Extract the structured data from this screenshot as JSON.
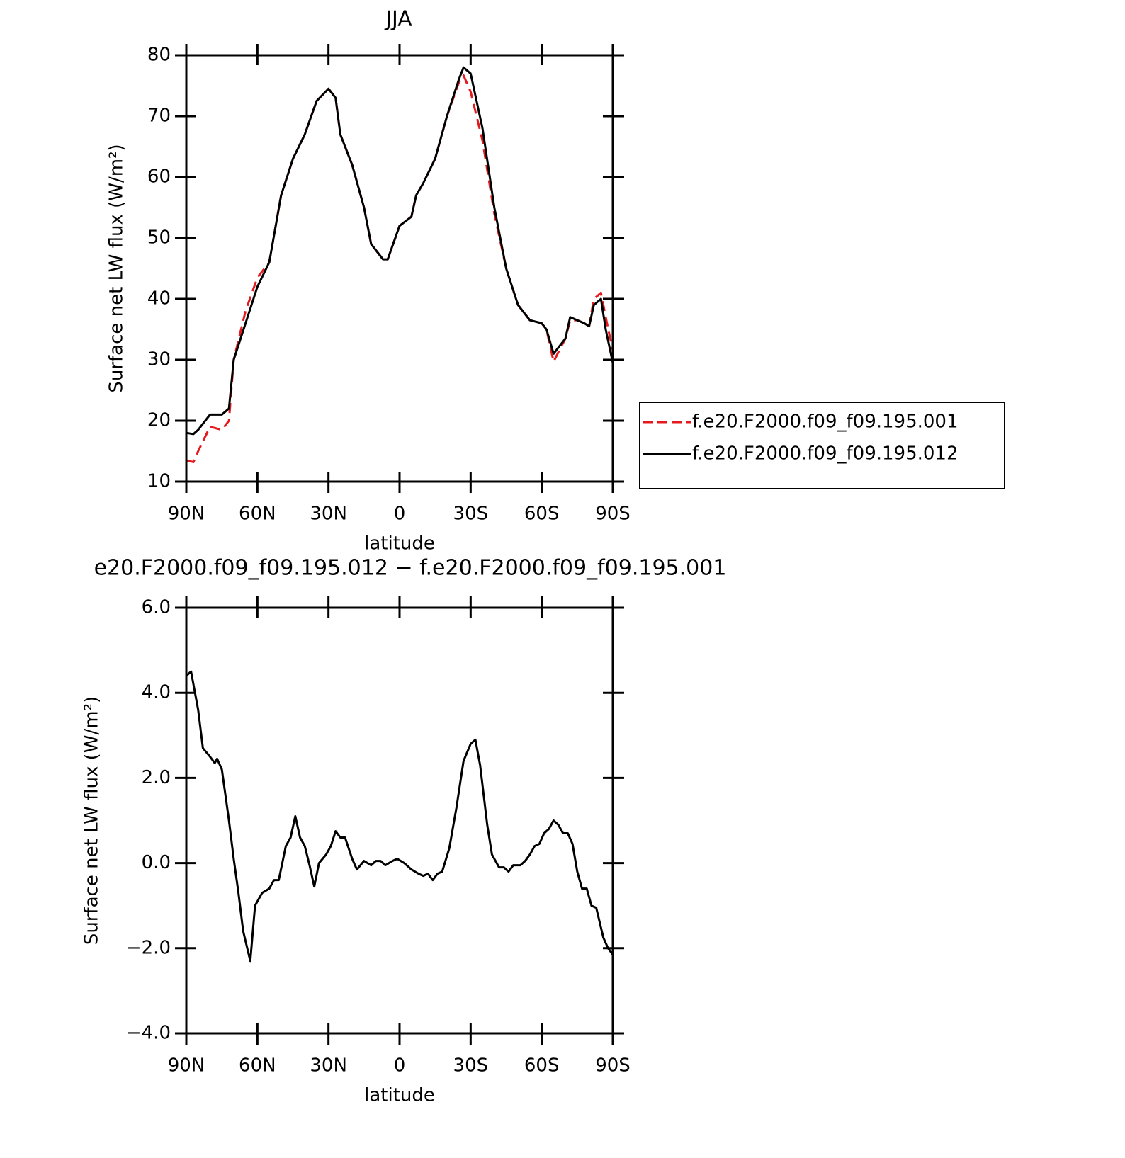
{
  "chart_data": [
    {
      "type": "line",
      "title": "JJA",
      "x_label": "latitude",
      "y_label": "Surface net LW flux (W/m²)",
      "x": [
        90,
        87,
        85,
        80,
        75,
        72,
        70,
        65,
        60,
        55,
        50,
        45,
        40,
        35,
        30,
        27,
        25,
        20,
        15,
        12,
        10,
        7,
        5,
        0,
        -5,
        -7,
        -10,
        -15,
        -20,
        -25,
        -27,
        -30,
        -35,
        -40,
        -45,
        -50,
        -55,
        -60,
        -62,
        -65,
        -68,
        -70,
        -72,
        -75,
        -78,
        -80,
        -82,
        -85,
        -87,
        -90
      ],
      "series": [
        {
          "name": "f.e20.F2000.f09_f09.195.001",
          "color": "#e41a1c",
          "line_style": "dashed",
          "values": [
            13.5,
            13.2,
            15,
            19,
            18.5,
            20,
            30,
            38,
            43.5,
            46,
            57,
            63,
            67,
            72.5,
            74.5,
            73,
            67,
            62,
            55,
            49,
            48,
            46.5,
            46.5,
            52,
            53.5,
            57,
            59,
            63,
            70,
            75.5,
            76.7,
            74,
            66,
            54,
            45,
            39,
            36.5,
            36,
            35,
            29.7,
            32,
            33.5,
            36.5,
            36.5,
            36,
            35.5,
            40,
            41,
            37,
            31.5
          ]
        },
        {
          "name": "f.e20.F2000.f09_f09.195.012",
          "color": "#000000",
          "line_style": "solid",
          "values": [
            18,
            17.8,
            18.5,
            21,
            21,
            22,
            30,
            36,
            42,
            46,
            57,
            63,
            67,
            72.5,
            74.5,
            73,
            67,
            62,
            55,
            49,
            48,
            46.5,
            46.5,
            52,
            53.5,
            57,
            59,
            63,
            70,
            76,
            78,
            77,
            68,
            55,
            45,
            39,
            36.5,
            36,
            35,
            31,
            32.5,
            33.5,
            37,
            36.5,
            36,
            35.5,
            39,
            40,
            35,
            29.5
          ]
        }
      ],
      "xlim": [
        90,
        -90
      ],
      "xticks": [
        {
          "value": 90,
          "label": "90N"
        },
        {
          "value": 60,
          "label": "60N"
        },
        {
          "value": 30,
          "label": "30N"
        },
        0,
        {
          "value": -30,
          "label": "30S"
        },
        {
          "value": -60,
          "label": "60S"
        },
        {
          "value": -90,
          "label": "90S"
        }
      ],
      "ylim": [
        10,
        80
      ],
      "yticks": [
        10,
        20,
        30,
        40,
        50,
        60,
        70,
        80
      ],
      "legend": "right"
    },
    {
      "type": "line",
      "title": "e20.F2000.f09_f09.195.012 − f.e20.F2000.f09_f09.195.001",
      "x_label": "latitude",
      "y_label": "Surface net LW flux (W/m²)",
      "x": [
        90,
        88,
        85,
        83,
        80,
        78,
        77,
        75,
        72,
        70,
        68,
        66,
        63,
        61,
        58,
        55,
        53,
        51,
        48,
        46,
        44,
        42,
        40,
        38,
        36,
        34,
        31,
        29,
        27,
        25,
        23,
        20,
        18,
        15,
        12,
        10,
        8,
        6,
        3,
        1,
        -2,
        -5,
        -8,
        -10,
        -12,
        -14,
        -16,
        -18,
        -21,
        -24,
        -27,
        -30,
        -32,
        -34,
        -37,
        -39,
        -42,
        -44,
        -46,
        -48,
        -51,
        -53,
        -55,
        -57,
        -59,
        -61,
        -63,
        -65,
        -67,
        -69,
        -71,
        -73,
        -75,
        -77,
        -79,
        -81,
        -83,
        -86,
        -88,
        -90
      ],
      "values": [
        4.4,
        4.5,
        3.6,
        2.7,
        2.5,
        2.35,
        2.45,
        2.2,
        1.0,
        0.1,
        -0.7,
        -1.6,
        -2.3,
        -1.0,
        -0.7,
        -0.6,
        -0.4,
        -0.4,
        0.4,
        0.6,
        1.1,
        0.6,
        0.4,
        -0.05,
        -0.55,
        0,
        0.2,
        0.4,
        0.75,
        0.6,
        0.6,
        0.1,
        -0.15,
        0.05,
        -0.05,
        0.05,
        0.05,
        -0.05,
        0.05,
        0.1,
        0,
        -0.15,
        -0.25,
        -0.3,
        -0.25,
        -0.4,
        -0.25,
        -0.2,
        0.35,
        1.3,
        2.4,
        2.8,
        2.9,
        2.3,
        0.9,
        0.2,
        -0.1,
        -0.1,
        -0.2,
        -0.05,
        -0.05,
        0.05,
        0.2,
        0.4,
        0.45,
        0.7,
        0.8,
        1.0,
        0.9,
        0.7,
        0.7,
        0.45,
        -0.2,
        -0.6,
        -0.6,
        -1.0,
        -1.05,
        -1.75,
        -2.0,
        -2.15
      ],
      "color": "#000000",
      "xlim": [
        90,
        -90
      ],
      "xticks": [
        {
          "value": 90,
          "label": "90N"
        },
        {
          "value": 60,
          "label": "60N"
        },
        {
          "value": 30,
          "label": "30N"
        },
        0,
        {
          "value": -30,
          "label": "30S"
        },
        {
          "value": -60,
          "label": "60S"
        },
        {
          "value": -90,
          "label": "90S"
        }
      ],
      "ylim": [
        -4,
        6
      ],
      "yticks": [
        {
          "value": -4,
          "label": "−4.0"
        },
        {
          "value": -2,
          "label": "−2.0"
        },
        {
          "value": 0,
          "label": "0.0"
        },
        {
          "value": 2,
          "label": "2.0"
        },
        {
          "value": 4,
          "label": "4.0"
        },
        {
          "value": 6,
          "label": "6.0"
        }
      ]
    }
  ]
}
